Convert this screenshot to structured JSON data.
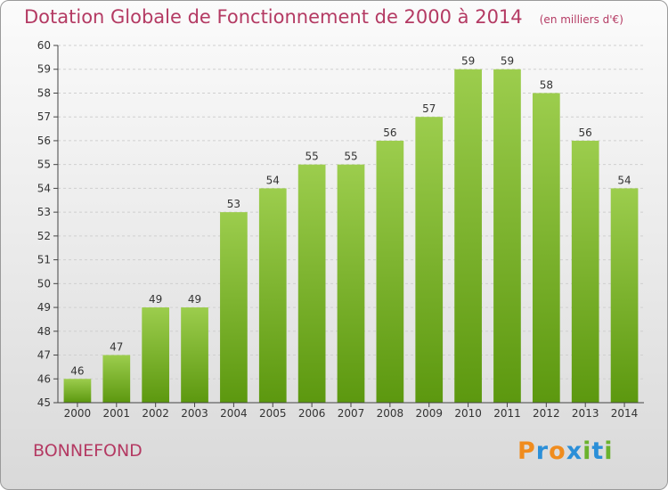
{
  "header": {
    "title": "Dotation Globale de Fonctionnement de 2000 à 2014",
    "unit": "(en milliers d'€)"
  },
  "footer": {
    "commune": "BONNEFOND",
    "logo_text": "Proxiti"
  },
  "colors": {
    "title": "#b43a63",
    "bar_top": "#9ccd4d",
    "bar_bottom": "#5c980f",
    "logo_letters": [
      "#f08c1e",
      "#2b8fd8",
      "#f08c1e",
      "#2b8fd8",
      "#6ab22d",
      "#2b8fd8",
      "#6ab22d"
    ]
  },
  "chart_data": {
    "type": "bar",
    "title": "Dotation Globale de Fonctionnement de 2000 à 2014",
    "subtitle": "(en milliers d'€)",
    "categories": [
      "2000",
      "2001",
      "2002",
      "2003",
      "2004",
      "2005",
      "2006",
      "2007",
      "2008",
      "2009",
      "2010",
      "2011",
      "2012",
      "2013",
      "2014"
    ],
    "values": [
      46,
      47,
      49,
      49,
      53,
      54,
      55,
      55,
      56,
      57,
      59,
      59,
      58,
      56,
      54
    ],
    "ylim": [
      45,
      60
    ],
    "yticks": [
      45,
      46,
      47,
      48,
      49,
      50,
      51,
      52,
      53,
      54,
      55,
      56,
      57,
      58,
      59,
      60
    ],
    "grid": true,
    "data_labels": true
  }
}
